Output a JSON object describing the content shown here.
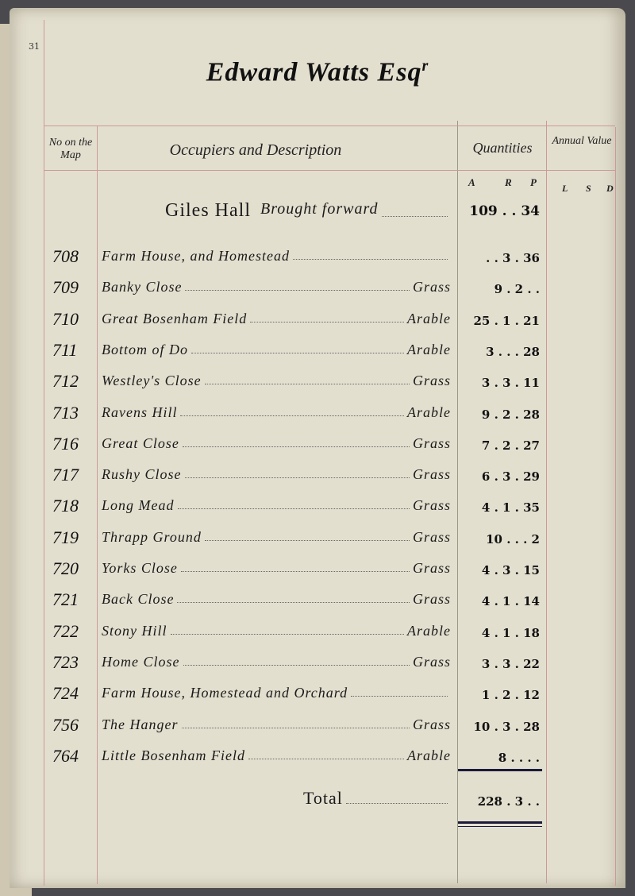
{
  "page_number": "31",
  "title": "Edward Watts Esq",
  "title_suffix": "r",
  "headers": {
    "number": "No on the Map",
    "occupiers": "Occupiers and Description",
    "quantities": "Quantities",
    "annual_value": "Annual Value",
    "qty_units": [
      "A",
      "R",
      "P"
    ],
    "value_units": [
      "L",
      "S",
      "D"
    ]
  },
  "brought_forward": {
    "place": "Giles Hall",
    "label": "Brought forward",
    "quantity": "109 . . 34"
  },
  "rows": [
    {
      "no": "708",
      "desc": "Farm House, and Homestead",
      "use": "",
      "qty": ". . 3 . 36"
    },
    {
      "no": "709",
      "desc": "Banky Close",
      "use": "Grass",
      "qty": "9 . 2 . ."
    },
    {
      "no": "710",
      "desc": "Great Bosenham Field",
      "use": "Arable",
      "qty": "25 . 1 . 21"
    },
    {
      "no": "711",
      "desc": "Bottom of   Do",
      "use": "Arable",
      "qty": "3 . . . 28"
    },
    {
      "no": "712",
      "desc": "Westley's Close",
      "use": "Grass",
      "qty": "3 . 3 . 11"
    },
    {
      "no": "713",
      "desc": "Ravens Hill",
      "use": "Arable",
      "qty": "9 . 2 . 28"
    },
    {
      "no": "716",
      "desc": "Great Close",
      "use": "Grass",
      "qty": "7 . 2 . 27"
    },
    {
      "no": "717",
      "desc": "Rushy Close",
      "use": "Grass",
      "qty": "6 . 3 . 29"
    },
    {
      "no": "718",
      "desc": "Long Mead",
      "use": "Grass",
      "qty": "4 . 1 . 35"
    },
    {
      "no": "719",
      "desc": "Thrapp Ground",
      "use": "Grass",
      "qty": "10 . . . 2"
    },
    {
      "no": "720",
      "desc": "Yorks Close",
      "use": "Grass",
      "qty": "4 . 3 . 15"
    },
    {
      "no": "721",
      "desc": "Back Close",
      "use": "Grass",
      "qty": "4 . 1 . 14"
    },
    {
      "no": "722",
      "desc": "Stony Hill",
      "use": "Arable",
      "qty": "4 . 1 . 18"
    },
    {
      "no": "723",
      "desc": "Home Close",
      "use": "Grass",
      "qty": "3 . 3 . 22"
    },
    {
      "no": "724",
      "desc": "Farm House, Homestead and Orchard",
      "use": "",
      "qty": "1 . 2 . 12"
    },
    {
      "no": "756",
      "desc": "The Hanger",
      "use": "Grass",
      "qty": "10 . 3 . 28"
    },
    {
      "no": "764",
      "desc": "Little Bosenham Field",
      "use": "Arable",
      "qty": "8 . . . ."
    }
  ],
  "total": {
    "label": "Total",
    "quantity": "228 . 3 . ."
  }
}
